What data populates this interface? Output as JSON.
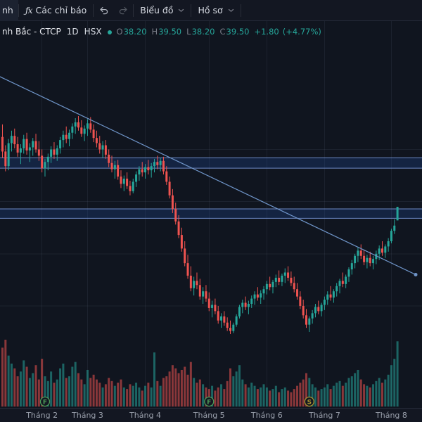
{
  "toolbar": {
    "truncated_label": "nh",
    "fx_icon": "ƒx",
    "indicators_label": "Các chỉ báo",
    "undo_icon": "undo-arrow",
    "redo_icon": "redo-arrow",
    "chart_menu_label": "Biểu đồ",
    "profile_menu_label": "Hồ sơ"
  },
  "legend": {
    "symbol": "nh Bắc - CTCP",
    "interval": "1D",
    "exchange": "HSX",
    "status_dot": "live-green",
    "values": [
      {
        "label": "O",
        "value": "38.20"
      },
      {
        "label": "H",
        "value": "39.50"
      },
      {
        "label": "L",
        "value": "38.20"
      },
      {
        "label": "C",
        "value": "39.50"
      }
    ],
    "change": "+1.80",
    "change_percent": "(+4.77%)"
  },
  "colors": {
    "up": "#26a69a",
    "down": "#ef5350",
    "vol_up": "rgba(38,166,154,0.55)",
    "vol_down": "rgba(239,83,80,0.55)",
    "grid": "rgba(151,166,195,0.09)",
    "zone_fill": "rgba(38,90,190,0.22)",
    "zone_edge": "rgba(125,155,223,0.85)",
    "trendline": "#6f95c9",
    "marker_f": "#4d9a57",
    "marker_s": "#a8932f",
    "chart_bg": "#10151f",
    "panel_bg": "#131722"
  },
  "chart_data": {
    "type": "candlestick+volume",
    "title": "nh Bắc - CTCP, 1D, HSX",
    "legend_position": "top-left",
    "grid": "on",
    "last": {
      "open": 38.2,
      "high": 39.5,
      "low": 38.2,
      "close": 39.5,
      "change": 1.8,
      "change_percent": 4.77
    },
    "price_gridlines": [
      30,
      35,
      40,
      45
    ],
    "months": [
      {
        "label": "Tháng 2",
        "index": 13
      },
      {
        "label": "Tháng 3",
        "index": 28
      },
      {
        "label": "Tháng 4",
        "index": 47
      },
      {
        "label": "Tháng 5",
        "index": 68
      },
      {
        "label": "Tháng 6",
        "index": 87
      },
      {
        "label": "Tháng 7",
        "index": 106
      },
      {
        "label": "Tháng 8",
        "index": 128
      }
    ],
    "zones": [
      {
        "top": 44.2,
        "bottom": 43.2
      },
      {
        "top": 39.3,
        "bottom": 38.4
      }
    ],
    "trendline": {
      "i1": -1,
      "p1": 52.0,
      "i2": 136,
      "p2": 33.0
    },
    "timeline_markers": [
      {
        "label": "F",
        "index": 14,
        "color_key": "marker_f"
      },
      {
        "label": "F",
        "index": 68,
        "color_key": "marker_f"
      },
      {
        "label": "S",
        "index": 101,
        "color_key": "marker_s"
      }
    ],
    "candles": [
      [
        46.2,
        47.4,
        44.2,
        44.8
      ],
      [
        44.8,
        45.4,
        42.9,
        43.4
      ],
      [
        43.4,
        46.0,
        43.0,
        45.6
      ],
      [
        45.6,
        46.8,
        44.8,
        46.3
      ],
      [
        46.3,
        47.0,
        45.1,
        45.5
      ],
      [
        45.5,
        46.2,
        44.3,
        44.7
      ],
      [
        44.7,
        45.5,
        43.6,
        45.1
      ],
      [
        45.1,
        46.4,
        44.6,
        46.0
      ],
      [
        46.0,
        46.6,
        44.5,
        44.9
      ],
      [
        44.9,
        45.6,
        43.8,
        45.2
      ],
      [
        45.2,
        46.1,
        44.4,
        45.8
      ],
      [
        45.8,
        46.5,
        44.7,
        45.0
      ],
      [
        45.0,
        45.8,
        43.9,
        44.4
      ],
      [
        44.4,
        45.0,
        42.8,
        43.2
      ],
      [
        43.2,
        44.1,
        42.4,
        43.8
      ],
      [
        43.8,
        44.6,
        43.0,
        44.3
      ],
      [
        44.3,
        45.3,
        43.7,
        45.0
      ],
      [
        45.0,
        45.7,
        44.1,
        44.5
      ],
      [
        44.5,
        45.4,
        43.9,
        45.1
      ],
      [
        45.1,
        46.2,
        44.6,
        45.9
      ],
      [
        45.9,
        46.8,
        45.2,
        46.4
      ],
      [
        46.4,
        47.2,
        45.6,
        46.0
      ],
      [
        46.0,
        46.9,
        45.3,
        46.6
      ],
      [
        46.6,
        47.5,
        46.0,
        47.2
      ],
      [
        47.2,
        48.0,
        46.5,
        47.6
      ],
      [
        47.6,
        48.2,
        46.8,
        47.1
      ],
      [
        47.1,
        47.8,
        46.2,
        46.5
      ],
      [
        46.5,
        47.3,
        45.8,
        47.0
      ],
      [
        47.0,
        47.9,
        46.3,
        47.5
      ],
      [
        47.5,
        48.1,
        46.6,
        46.9
      ],
      [
        46.9,
        47.4,
        45.7,
        46.1
      ],
      [
        46.1,
        46.8,
        45.2,
        45.6
      ],
      [
        45.6,
        46.3,
        44.6,
        45.0
      ],
      [
        45.0,
        45.8,
        44.2,
        45.4
      ],
      [
        45.4,
        45.9,
        44.1,
        44.5
      ],
      [
        44.5,
        45.0,
        43.3,
        43.7
      ],
      [
        43.7,
        44.4,
        42.8,
        43.1
      ],
      [
        43.1,
        43.9,
        42.2,
        43.5
      ],
      [
        43.5,
        44.0,
        42.1,
        42.4
      ],
      [
        42.4,
        43.0,
        41.3,
        41.7
      ],
      [
        41.7,
        42.5,
        41.0,
        42.2
      ],
      [
        42.2,
        42.8,
        41.2,
        41.5
      ],
      [
        41.5,
        42.0,
        40.6,
        41.0
      ],
      [
        41.0,
        42.2,
        40.8,
        41.9
      ],
      [
        41.9,
        42.9,
        41.4,
        42.6
      ],
      [
        42.6,
        43.4,
        42.0,
        43.1
      ],
      [
        43.1,
        43.8,
        42.4,
        42.8
      ],
      [
        42.8,
        43.6,
        42.2,
        43.3
      ],
      [
        43.3,
        44.0,
        42.6,
        43.0
      ],
      [
        43.0,
        43.7,
        42.3,
        43.4
      ],
      [
        43.4,
        44.1,
        42.8,
        43.8
      ],
      [
        43.8,
        44.4,
        43.1,
        43.5
      ],
      [
        43.5,
        44.2,
        42.9,
        43.9
      ],
      [
        43.9,
        44.3,
        42.6,
        42.9
      ],
      [
        42.9,
        43.4,
        41.6,
        41.9
      ],
      [
        41.9,
        42.4,
        40.3,
        40.6
      ],
      [
        40.6,
        41.2,
        38.9,
        39.3
      ],
      [
        39.3,
        39.9,
        37.8,
        38.1
      ],
      [
        38.1,
        38.7,
        36.5,
        36.8
      ],
      [
        36.8,
        37.5,
        35.2,
        35.5
      ],
      [
        35.5,
        36.2,
        33.8,
        34.1
      ],
      [
        34.1,
        34.9,
        32.6,
        32.9
      ],
      [
        32.9,
        33.8,
        31.4,
        31.7
      ],
      [
        31.7,
        32.8,
        31.0,
        32.4
      ],
      [
        32.4,
        33.2,
        31.6,
        32.0
      ],
      [
        32.0,
        32.6,
        30.6,
        30.9
      ],
      [
        30.9,
        31.8,
        30.2,
        31.4
      ],
      [
        31.4,
        32.0,
        30.4,
        30.7
      ],
      [
        30.7,
        31.3,
        29.5,
        29.8
      ],
      [
        29.8,
        30.5,
        28.9,
        30.1
      ],
      [
        30.1,
        30.7,
        29.2,
        29.5
      ],
      [
        29.5,
        30.0,
        28.3,
        28.6
      ],
      [
        28.6,
        29.3,
        27.9,
        29.0
      ],
      [
        29.0,
        29.5,
        28.1,
        28.4
      ],
      [
        28.4,
        28.9,
        27.6,
        27.9
      ],
      [
        27.9,
        28.6,
        27.3,
        27.6
      ],
      [
        27.6,
        28.4,
        27.4,
        28.2
      ],
      [
        28.2,
        29.2,
        28.0,
        29.0
      ],
      [
        29.0,
        30.1,
        28.8,
        29.9
      ],
      [
        29.9,
        30.6,
        29.3,
        30.3
      ],
      [
        30.3,
        30.9,
        29.6,
        29.9
      ],
      [
        29.9,
        30.5,
        29.2,
        30.2
      ],
      [
        30.2,
        31.0,
        29.8,
        30.7
      ],
      [
        30.7,
        31.4,
        30.1,
        31.1
      ],
      [
        31.1,
        31.8,
        30.5,
        30.8
      ],
      [
        30.8,
        31.5,
        30.2,
        31.2
      ],
      [
        31.2,
        31.9,
        30.6,
        31.6
      ],
      [
        31.6,
        32.4,
        31.1,
        32.1
      ],
      [
        32.1,
        32.8,
        31.5,
        31.8
      ],
      [
        31.8,
        32.5,
        31.2,
        32.3
      ],
      [
        32.3,
        33.0,
        31.8,
        32.7
      ],
      [
        32.7,
        33.4,
        32.0,
        32.3
      ],
      [
        32.3,
        33.1,
        31.9,
        32.9
      ],
      [
        32.9,
        33.6,
        32.2,
        33.2
      ],
      [
        33.2,
        33.8,
        32.4,
        32.7
      ],
      [
        32.7,
        33.3,
        31.9,
        32.2
      ],
      [
        32.2,
        32.8,
        31.3,
        31.6
      ],
      [
        31.6,
        32.2,
        30.6,
        30.9
      ],
      [
        30.9,
        31.4,
        29.7,
        30.0
      ],
      [
        30.0,
        30.6,
        28.8,
        29.1
      ],
      [
        29.1,
        29.7,
        27.9,
        28.2
      ],
      [
        28.2,
        29.0,
        27.5,
        28.8
      ],
      [
        28.8,
        29.6,
        28.3,
        29.3
      ],
      [
        29.3,
        30.2,
        28.9,
        29.9
      ],
      [
        29.9,
        30.5,
        29.2,
        29.5
      ],
      [
        29.5,
        30.3,
        29.0,
        30.1
      ],
      [
        30.1,
        30.9,
        29.6,
        30.6
      ],
      [
        30.6,
        31.4,
        30.1,
        31.1
      ],
      [
        31.1,
        31.9,
        30.5,
        30.8
      ],
      [
        30.8,
        31.6,
        30.3,
        31.4
      ],
      [
        31.4,
        32.2,
        30.9,
        31.9
      ],
      [
        31.9,
        32.6,
        31.2,
        32.4
      ],
      [
        32.4,
        33.2,
        31.8,
        32.1
      ],
      [
        32.1,
        33.0,
        31.7,
        32.8
      ],
      [
        32.8,
        33.7,
        32.3,
        33.5
      ],
      [
        33.5,
        34.4,
        33.0,
        34.1
      ],
      [
        34.1,
        35.0,
        33.6,
        34.8
      ],
      [
        34.8,
        35.6,
        34.2,
        35.3
      ],
      [
        35.3,
        35.9,
        34.5,
        34.8
      ],
      [
        34.8,
        35.4,
        33.9,
        34.2
      ],
      [
        34.2,
        34.9,
        33.6,
        34.6
      ],
      [
        34.6,
        35.2,
        33.8,
        34.1
      ],
      [
        34.1,
        34.8,
        33.5,
        34.5
      ],
      [
        34.5,
        35.3,
        34.0,
        35.0
      ],
      [
        35.0,
        35.8,
        34.4,
        35.5
      ],
      [
        35.5,
        36.2,
        34.8,
        35.1
      ],
      [
        35.1,
        35.9,
        34.6,
        35.7
      ],
      [
        35.7,
        36.5,
        35.2,
        36.2
      ],
      [
        36.2,
        37.4,
        36.0,
        37.2
      ],
      [
        37.2,
        38.3,
        36.9,
        37.7
      ],
      [
        38.2,
        39.5,
        38.2,
        39.5
      ]
    ],
    "volumes": [
      1.85,
      2.1,
      1.6,
      1.35,
      1.2,
      0.95,
      1.1,
      1.45,
      1.25,
      0.9,
      1.05,
      1.3,
      0.85,
      1.5,
      0.95,
      0.8,
      1.1,
      0.75,
      0.85,
      1.2,
      1.35,
      0.9,
      0.95,
      1.25,
      1.4,
      1.05,
      0.85,
      0.7,
      1.15,
      0.9,
      1.0,
      0.85,
      0.75,
      0.6,
      0.7,
      0.9,
      0.8,
      0.65,
      0.75,
      0.85,
      0.6,
      0.55,
      0.7,
      0.65,
      0.75,
      0.6,
      0.5,
      0.65,
      0.75,
      0.6,
      1.7,
      0.8,
      0.65,
      0.9,
      0.95,
      1.1,
      1.3,
      1.2,
      1.05,
      1.15,
      1.25,
      1.0,
      1.4,
      0.9,
      0.75,
      0.85,
      0.7,
      0.6,
      0.55,
      0.65,
      0.5,
      0.6,
      0.7,
      0.55,
      0.8,
      1.2,
      0.95,
      1.1,
      1.3,
      0.85,
      0.7,
      0.6,
      0.75,
      0.65,
      0.55,
      0.6,
      0.7,
      0.6,
      0.5,
      0.55,
      0.65,
      0.45,
      0.55,
      0.6,
      0.5,
      0.45,
      0.55,
      0.65,
      0.75,
      0.85,
      1.05,
      0.9,
      0.7,
      0.6,
      0.5,
      0.55,
      0.6,
      0.7,
      0.55,
      0.65,
      0.75,
      0.8,
      0.65,
      0.75,
      0.9,
      0.95,
      1.05,
      1.15,
      0.85,
      0.7,
      0.65,
      0.6,
      0.7,
      0.8,
      0.9,
      0.75,
      0.85,
      1.0,
      1.3,
      1.5,
      2.05
    ]
  }
}
